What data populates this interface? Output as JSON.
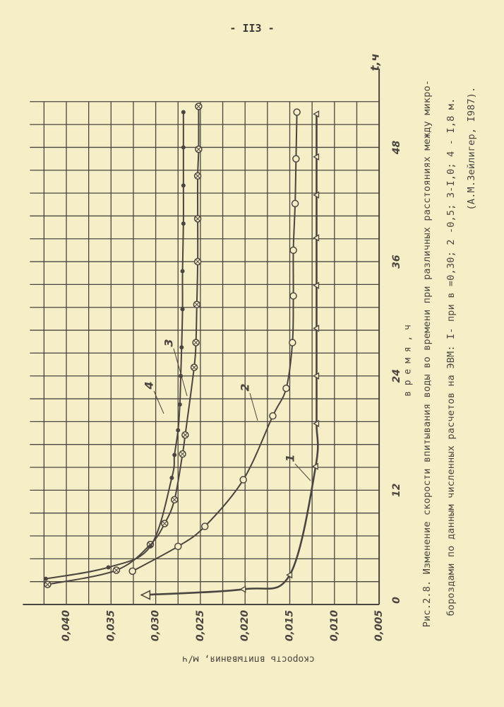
{
  "page_number": "- II3 -",
  "caption": {
    "line1": "Рис.2.8. Изменение скорости впитывания воды во времени при различных расстояниях между микро-",
    "line2": "бороздами  по данным численных расчетов на ЭВМ: I- при в =0,30; 2 -0,5; 3-I,0; 4 - I,8 м.",
    "line3": "(А.М.Зейлигер, I987)."
  },
  "colors": {
    "paper": "#f6eec6",
    "ink": "#4a4540"
  },
  "chart_data": {
    "type": "line",
    "orientation": "rotated 90° (time axis vertical, speed axis horizontal, increasing leftward)",
    "xlabel": "в р е м я , ч",
    "xlabel_arrow": "t,ч",
    "ylabel": "скорость впитывания, м/ч",
    "x_ticks": [
      "0",
      "12",
      "24",
      "36",
      "48"
    ],
    "x_tick_values": [
      0,
      12,
      24,
      36,
      48
    ],
    "y_ticks": [
      "0,005",
      "0,010",
      "0,015",
      "0,020",
      "0,025",
      "0,030",
      "0,035",
      "0,040"
    ],
    "y_tick_values": [
      0.005,
      0.01,
      0.015,
      0.02,
      0.025,
      0.03,
      0.035,
      0.04
    ],
    "xlim": [
      0,
      52.8
    ],
    "ylim": [
      0.005,
      0.0425
    ],
    "grid": true,
    "series": [
      {
        "name": "1",
        "marker": "triangle",
        "x": [
          1.0,
          1.6,
          3.1,
          14.5,
          19,
          24,
          29,
          33.5,
          38.5,
          43,
          47,
          51.5
        ],
        "y": [
          0.0316,
          0.0202,
          0.015,
          0.0121,
          0.012,
          0.012,
          0.012,
          0.012,
          0.012,
          0.012,
          0.012,
          0.012
        ]
      },
      {
        "name": "2",
        "marker": "open-circle",
        "x": [
          3.5,
          6.1,
          8.2,
          13.1,
          19.8,
          22.7,
          27.5,
          32.4,
          37.2,
          42.1,
          46.8,
          51.7
        ],
        "y": [
          0.0326,
          0.0275,
          0.0245,
          0.0202,
          0.0169,
          0.0154,
          0.0147,
          0.0146,
          0.0146,
          0.0144,
          0.0143,
          0.0142
        ]
      },
      {
        "name": "3",
        "marker": "crossed-circle",
        "x": [
          2.1,
          3.6,
          6.3,
          8.5,
          11,
          15.8,
          17.8,
          24.9,
          27.5,
          31.5,
          36,
          40.5,
          45,
          47.8,
          52.3
        ],
        "y": [
          0.0421,
          0.0344,
          0.0306,
          0.029,
          0.0279,
          0.027,
          0.0267,
          0.0257,
          0.0255,
          0.0254,
          0.0253,
          0.0253,
          0.0253,
          0.0252,
          0.0252
        ]
      },
      {
        "name": "4",
        "marker": "dot",
        "x": [
          2.7,
          3.9,
          6.1,
          13.3,
          15.7,
          18.3,
          21,
          24,
          27,
          31,
          35,
          40,
          44,
          48,
          51.7
        ],
        "y": [
          0.0423,
          0.0353,
          0.0306,
          0.0282,
          0.0279,
          0.0275,
          0.0273,
          0.0272,
          0.0271,
          0.027,
          0.027,
          0.0269,
          0.0269,
          0.0269,
          0.0269
        ]
      }
    ]
  }
}
